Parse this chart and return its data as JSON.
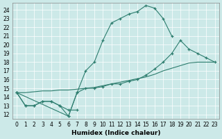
{
  "xlabel": "Humidex (Indice chaleur)",
  "background_color": "#cce9e8",
  "line_color": "#2d7d6e",
  "xlim": [
    -0.5,
    23.5
  ],
  "ylim": [
    11.5,
    24.8
  ],
  "xticks": [
    0,
    1,
    2,
    3,
    4,
    5,
    6,
    7,
    8,
    9,
    10,
    11,
    12,
    13,
    14,
    15,
    16,
    17,
    18,
    19,
    20,
    21,
    22,
    23
  ],
  "yticks": [
    12,
    13,
    14,
    15,
    16,
    17,
    18,
    19,
    20,
    21,
    22,
    23,
    24
  ],
  "lines": [
    {
      "x": [
        0,
        1,
        2,
        3,
        4,
        5,
        6,
        7
      ],
      "y": [
        14.5,
        13.0,
        13.0,
        13.5,
        13.5,
        13.0,
        12.5,
        12.5
      ],
      "marker": true
    },
    {
      "x": [
        0,
        6,
        7,
        8,
        9,
        10,
        11,
        12,
        13,
        14,
        15,
        16,
        17,
        18
      ],
      "y": [
        14.5,
        11.8,
        14.5,
        17.0,
        18.0,
        20.5,
        22.5,
        23.0,
        23.5,
        23.8,
        24.5,
        24.2,
        23.0,
        21.0
      ],
      "marker": true
    },
    {
      "x": [
        0,
        1,
        2,
        3,
        4,
        5,
        6,
        7,
        8,
        9,
        10,
        11,
        12,
        13,
        14,
        15,
        16,
        17,
        18,
        19,
        20,
        21,
        22,
        23
      ],
      "y": [
        14.5,
        13.0,
        13.0,
        13.5,
        13.5,
        13.0,
        11.8,
        14.5,
        15.0,
        15.0,
        15.2,
        15.5,
        15.5,
        15.8,
        16.0,
        16.5,
        17.2,
        18.0,
        19.0,
        20.5,
        19.5,
        19.0,
        18.5,
        18.0
      ],
      "marker": true
    },
    {
      "x": [
        0,
        1,
        2,
        3,
        4,
        5,
        6,
        7,
        8,
        9,
        10,
        11,
        12,
        13,
        14,
        15,
        16,
        17,
        18,
        19,
        20,
        21,
        22,
        23
      ],
      "y": [
        14.5,
        14.5,
        14.6,
        14.7,
        14.7,
        14.8,
        14.8,
        14.9,
        15.0,
        15.1,
        15.3,
        15.5,
        15.7,
        15.9,
        16.1,
        16.3,
        16.6,
        17.0,
        17.3,
        17.6,
        17.9,
        18.0,
        18.0,
        18.0
      ],
      "marker": false
    }
  ]
}
